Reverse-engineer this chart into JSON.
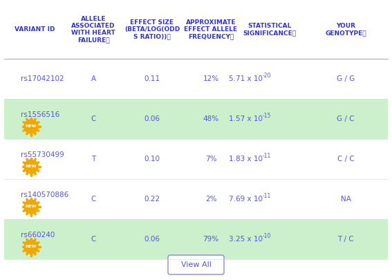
{
  "headers": [
    "VARIANT ID",
    "ALLELE\nASSOCIATED\nWITH HEART\nFAILUREⓘ",
    "EFFECT SIZE\n(BETA/LOG(ODD\nS RATIO))ⓘ",
    "APPROXIMATE\nEFFECT ALLELE\nFREQUENCYⓘ",
    "STATISTICAL\nSIGNIFICANCEⓘ",
    "YOUR\nGENOTYPEⓘ"
  ],
  "rows": [
    {
      "variant": "rs17042102",
      "allele": "A",
      "effect_size": "0.11",
      "freq": "12%",
      "significance": "5.71 x 10⁻²⁰",
      "genotype": "G / G",
      "highlighted": false,
      "new_badge": false,
      "sig_base": "5.71",
      "sig_exp": "-20"
    },
    {
      "variant": "rs1556516",
      "allele": "C",
      "effect_size": "0.06",
      "freq": "48%",
      "significance": "1.57 x 10⁻¹⁵",
      "genotype": "G / C",
      "highlighted": true,
      "new_badge": true,
      "sig_base": "1.57",
      "sig_exp": "-15"
    },
    {
      "variant": "rs55730499",
      "allele": "T",
      "effect_size": "0.10",
      "freq": "7%",
      "significance": "1.83 x 10⁻¹¹",
      "genotype": "C / C",
      "highlighted": false,
      "new_badge": true,
      "sig_base": "1.83",
      "sig_exp": "-11"
    },
    {
      "variant": "rs140570886",
      "allele": "C",
      "effect_size": "0.22",
      "freq": "2%",
      "significance": "7.69 x 10⁻¹¹",
      "genotype": "NA",
      "highlighted": false,
      "new_badge": true,
      "sig_base": "7.69",
      "sig_exp": "-11"
    },
    {
      "variant": "rs660240",
      "allele": "C",
      "effect_size": "0.06",
      "freq": "79%",
      "significance": "3.25 x 10⁻¹⁰",
      "genotype": "T / C",
      "highlighted": true,
      "new_badge": true,
      "sig_base": "3.25",
      "sig_exp": "-10"
    }
  ],
  "header_color": "#3333cc",
  "text_color": "#5555dd",
  "highlight_color": "#ccf0cc",
  "badge_color": "#f0a800",
  "badge_text_color": "#ffffff",
  "border_color": "#aaaadd",
  "button_color": "#ffffff",
  "button_border_color": "#8888cc",
  "button_text": "View All",
  "background_color": "#ffffff"
}
